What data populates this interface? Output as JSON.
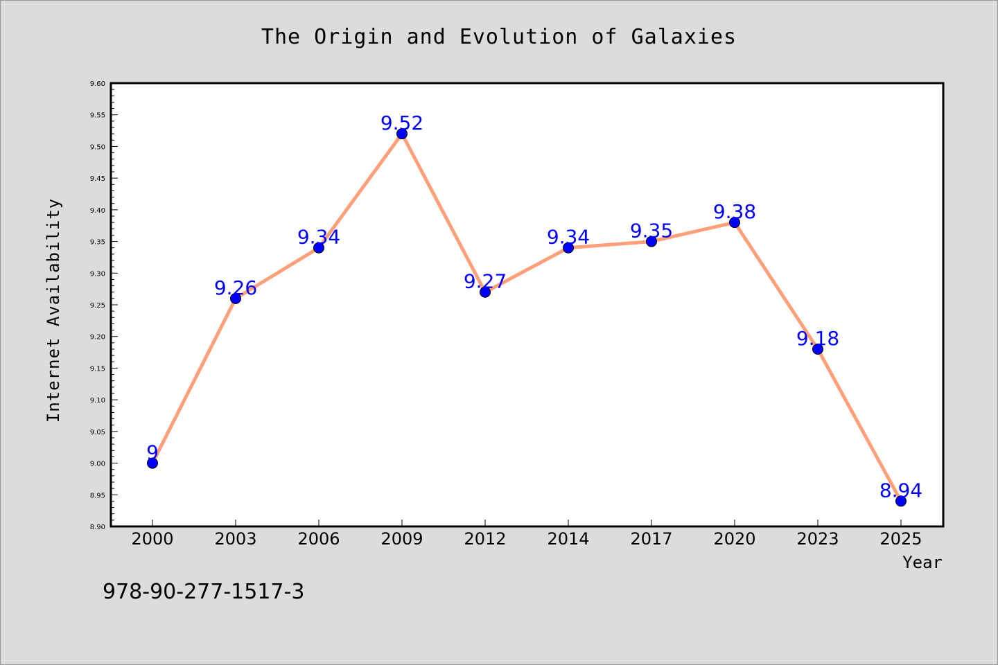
{
  "chart_data": {
    "type": "line",
    "title": "The Origin and Evolution of Galaxies",
    "xlabel": "Year",
    "ylabel": "Internet Availability",
    "categories": [
      "2000",
      "2003",
      "2006",
      "2009",
      "2012",
      "2014",
      "2017",
      "2020",
      "2023",
      "2025"
    ],
    "series": [
      {
        "values": [
          9.0,
          9.26,
          9.34,
          9.52,
          9.27,
          9.34,
          9.35,
          9.38,
          9.18,
          8.94
        ],
        "labels": [
          "9",
          "9.26",
          "9.34",
          "9.52",
          "9.27",
          "9.34",
          "9.35",
          "9.38",
          "9.18",
          "8.94"
        ]
      }
    ],
    "ylim": [
      8.9,
      9.6
    ],
    "yticks": [
      "8.90",
      "8.95",
      "9.00",
      "9.05",
      "9.10",
      "9.15",
      "9.20",
      "9.25",
      "9.30",
      "9.35",
      "9.40",
      "9.45",
      "9.50",
      "9.55",
      "9.60"
    ],
    "grid": false,
    "legend": "none",
    "annotation": "978-90-277-1517-3",
    "colors": {
      "background": "#dcdcdc",
      "plot_area": "#ffffff",
      "line": "#ffa07a",
      "marker": "#0000ff",
      "data_label": "#0000ff",
      "text": "#000000"
    }
  }
}
